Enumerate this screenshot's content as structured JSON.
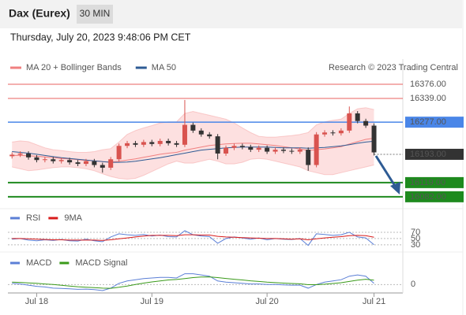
{
  "header": {
    "title": "Dax (Eurex)",
    "timeframe": "30 MIN",
    "timestamp": "Thursday, July 20, 2023 9:48:06 PM CET"
  },
  "chart_data": [
    {
      "type": "candlestick",
      "credit": "Research © 2023 Trading Central",
      "xlim": [
        -0.5,
        47.5
      ],
      "xticks": [
        {
          "value": 3,
          "label": "Jul 18"
        },
        {
          "value": 17,
          "label": "Jul 19"
        },
        {
          "value": 31,
          "label": "Jul 20"
        },
        {
          "value": 44,
          "label": "Jul 21"
        }
      ],
      "ylim": [
        16057,
        16442
      ],
      "up_color": "#d9534f",
      "down_color": "#333333",
      "open": [
        16188,
        16192,
        16195,
        16185,
        16178,
        16180,
        16175,
        16178,
        16172,
        16168,
        16175,
        16165,
        16158,
        16180,
        16215,
        16222,
        16218,
        16225,
        16220,
        16228,
        16222,
        16218,
        16270,
        16255,
        16245,
        16240,
        16195,
        16210,
        16215,
        16212,
        16205,
        16210,
        16200,
        16205,
        16202,
        16200,
        16205,
        16165,
        16245,
        16250,
        16248,
        16255,
        16300,
        16280,
        16268
      ],
      "high": [
        16198,
        16201,
        16201,
        16191,
        16186,
        16186,
        16184,
        16184,
        16178,
        16181,
        16181,
        16171,
        16186,
        16221,
        16228,
        16228,
        16231,
        16231,
        16234,
        16234,
        16228,
        16335,
        16276,
        16261,
        16251,
        16246,
        16216,
        16221,
        16221,
        16218,
        16216,
        16216,
        16211,
        16211,
        16208,
        16211,
        16211,
        16251,
        16256,
        16256,
        16261,
        16318,
        16306,
        16286,
        16274
      ],
      "low": [
        16182,
        16186,
        16179,
        16172,
        16172,
        16169,
        16169,
        16166,
        16162,
        16162,
        16159,
        16145,
        16152,
        16174,
        16209,
        16212,
        16212,
        16214,
        16214,
        16216,
        16212,
        16212,
        16249,
        16239,
        16234,
        16180,
        16189,
        16204,
        16206,
        16199,
        16199,
        16194,
        16194,
        16196,
        16194,
        16194,
        16150,
        16159,
        16239,
        16242,
        16242,
        16249,
        16274,
        16262,
        16190
      ],
      "close": [
        16192,
        16195,
        16185,
        16178,
        16180,
        16175,
        16178,
        16172,
        16168,
        16175,
        16165,
        16158,
        16180,
        16215,
        16222,
        16218,
        16225,
        16220,
        16228,
        16222,
        16218,
        16270,
        16255,
        16245,
        16240,
        16195,
        16210,
        16215,
        16212,
        16205,
        16210,
        16200,
        16205,
        16202,
        16200,
        16205,
        16165,
        16245,
        16250,
        16248,
        16255,
        16300,
        16280,
        16268,
        16198
      ],
      "series": [
        {
          "name": "MA 20 + Bollinger Bands",
          "color": "#f08080",
          "band_color": "#fde0e0",
          "values": [
            16190,
            16190,
            16189,
            16188,
            16186,
            16184,
            16182,
            16181,
            16179,
            16177,
            16176,
            16174,
            16173,
            16175,
            16178,
            16181,
            16185,
            16189,
            16193,
            16196,
            16198,
            16204,
            16208,
            16212,
            16216,
            16218,
            16220,
            16221,
            16222,
            16222,
            16220,
            16218,
            16216,
            16213,
            16210,
            16207,
            16203,
            16205,
            16207,
            16210,
            16213,
            16220,
            16226,
            16232,
            16235
          ],
          "upper": [
            16225,
            16228,
            16226,
            16218,
            16210,
            16205,
            16203,
            16200,
            16198,
            16198,
            16200,
            16205,
            16208,
            16225,
            16245,
            16255,
            16262,
            16268,
            16275,
            16278,
            16278,
            16300,
            16305,
            16300,
            16295,
            16290,
            16285,
            16275,
            16262,
            16250,
            16240,
            16238,
            16238,
            16240,
            16242,
            16245,
            16250,
            16270,
            16278,
            16282,
            16285,
            16300,
            16312,
            16315,
            16310
          ],
          "lower": [
            16160,
            16155,
            16150,
            16152,
            16155,
            16158,
            16160,
            16160,
            16158,
            16155,
            16150,
            16142,
            16135,
            16130,
            16128,
            16130,
            16138,
            16148,
            16158,
            16168,
            16175,
            16170,
            16170,
            16175,
            16180,
            16175,
            16168,
            16168,
            16172,
            16180,
            16182,
            16180,
            16175,
            16170,
            16165,
            16160,
            16150,
            16145,
            16140,
            16140,
            16145,
            16150,
            16155,
            16160,
            16165
          ]
        },
        {
          "name": "MA 50",
          "color": "#2e5b94",
          "values": [
            16200,
            16198,
            16196,
            16193,
            16190,
            16187,
            16184,
            16182,
            16180,
            16178,
            16176,
            16174,
            16172,
            16172,
            16173,
            16175,
            16178,
            16181,
            16184,
            16188,
            16192,
            16196,
            16200,
            16204,
            16206,
            16208,
            16210,
            16211,
            16212,
            16212,
            16212,
            16212,
            16211,
            16210,
            16210,
            16210,
            16209,
            16210,
            16211,
            16213,
            16215,
            16218,
            16222,
            16225,
            16227
          ]
        }
      ],
      "levels": {
        "values": [
          16376,
          16339,
          16277,
          16193,
          16119,
          16082
        ],
        "value_labels": [
          "16376.00",
          "16339.00",
          "16277.00",
          "16193.00",
          "16119.00",
          "16082.00"
        ],
        "colors": [
          "#e8605f",
          "#e8605f",
          "#4a86e8",
          "#333333",
          "#1e8a1e",
          "#1e8a1e"
        ],
        "boxed": [
          false,
          false,
          true,
          true,
          true,
          true
        ],
        "styles": [
          "solid",
          "solid",
          "solid",
          "dotted",
          "solid",
          "solid"
        ],
        "widths": [
          1,
          1,
          1.5,
          1,
          2,
          2
        ]
      }
    },
    {
      "type": "line",
      "ylim": [
        12,
        90
      ],
      "yticks": [
        70,
        50,
        30
      ],
      "series": [
        {
          "name": "RSI",
          "color": "#5b7fd6",
          "values": [
            48,
            50,
            45,
            43,
            46,
            44,
            47,
            43,
            42,
            48,
            43,
            40,
            55,
            65,
            62,
            60,
            63,
            58,
            61,
            56,
            55,
            75,
            62,
            58,
            56,
            35,
            50,
            55,
            52,
            48,
            52,
            46,
            50,
            48,
            47,
            50,
            28,
            65,
            63,
            60,
            62,
            70,
            55,
            52,
            30
          ]
        },
        {
          "name": "9MA",
          "color": "#d81b1b",
          "values": [
            50,
            50,
            49,
            48,
            47,
            46,
            46,
            45,
            45,
            45,
            45,
            44,
            46,
            49,
            52,
            55,
            58,
            60,
            60,
            60,
            59,
            62,
            62,
            61,
            61,
            57,
            55,
            54,
            53,
            52,
            51,
            50,
            50,
            49,
            48,
            49,
            46,
            49,
            52,
            54,
            56,
            59,
            60,
            59,
            54
          ]
        }
      ]
    },
    {
      "type": "line",
      "ylim": [
        -7,
        14
      ],
      "yticks": [
        0
      ],
      "series": [
        {
          "name": "MACD",
          "color": "#5b7fd6",
          "values": [
            1,
            0.5,
            -0.5,
            -1.5,
            -2,
            -3,
            -3.2,
            -3.5,
            -4,
            -3.8,
            -4.2,
            -5,
            -3,
            1,
            3,
            4,
            5,
            5.5,
            6,
            6,
            5.5,
            9,
            9,
            8,
            7,
            3,
            2,
            1.5,
            1,
            0.5,
            0.5,
            0,
            0,
            -0.3,
            -0.5,
            -0.5,
            -3,
            0,
            2,
            3,
            4,
            7,
            8,
            7,
            1
          ]
        },
        {
          "name": "MACD Signal",
          "color": "#3a9a1a",
          "values": [
            2,
            1.8,
            1.4,
            1,
            0.5,
            0,
            -0.6,
            -1.2,
            -1.8,
            -2.2,
            -2.6,
            -3,
            -3.1,
            -2.3,
            -1.2,
            0,
            1.2,
            2.2,
            3,
            3.8,
            4.2,
            5,
            5.8,
            6.3,
            6.4,
            5.8,
            5.1,
            4.4,
            3.8,
            3.1,
            2.6,
            2,
            1.6,
            1.2,
            0.9,
            0.6,
            -0.1,
            -0.1,
            0.3,
            0.9,
            1.5,
            2.6,
            3.7,
            4.4,
            3.7
          ]
        }
      ]
    }
  ]
}
